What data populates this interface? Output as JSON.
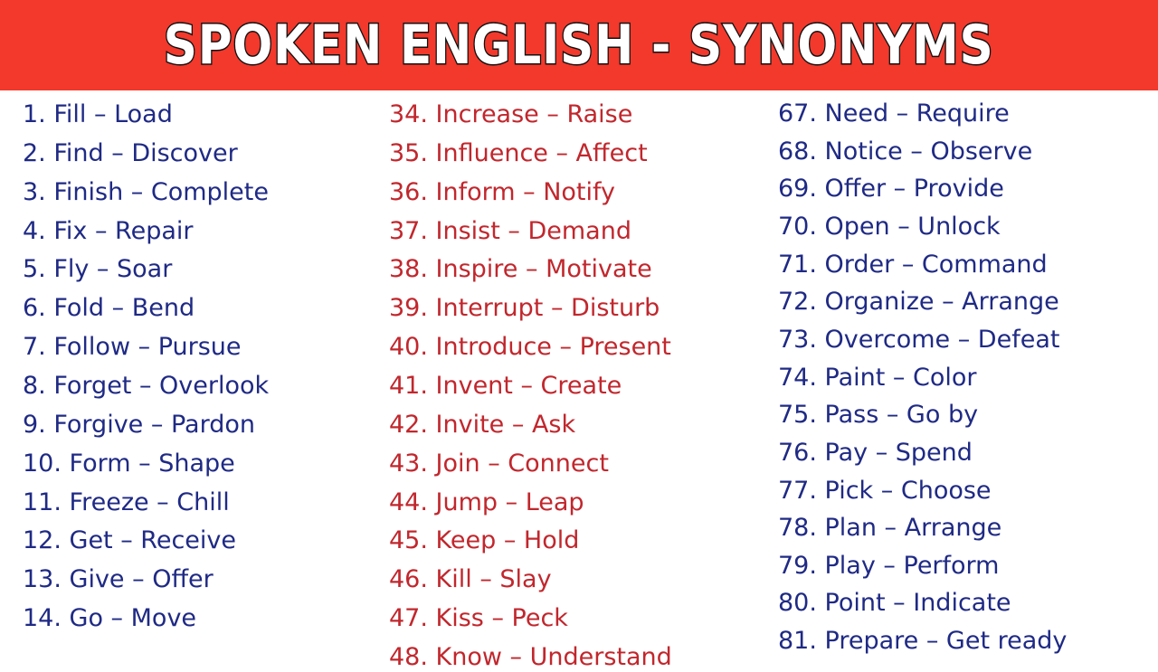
{
  "header": {
    "title": "Spoken English - Synonyms"
  },
  "columns": [
    [
      "1. Fill – Load",
      "2. Find – Discover",
      "3. Finish – Complete",
      "4. Fix – Repair",
      "5. Fly – Soar",
      "6. Fold – Bend",
      "7. Follow – Pursue",
      "8. Forget – Overlook",
      "9. Forgive – Pardon",
      "10. Form – Shape",
      "11. Freeze – Chill",
      "12. Get – Receive",
      "13. Give – Offer",
      "14. Go – Move"
    ],
    [
      "34. Increase – Raise",
      "35. Influence – Affect",
      "36. Inform – Notify",
      "37. Insist – Demand",
      "38. Inspire – Motivate",
      "39. Interrupt – Disturb",
      "40. Introduce – Present",
      "41. Invent – Create",
      "42. Invite – Ask",
      "43. Join – Connect",
      "44. Jump – Leap",
      "45. Keep – Hold",
      "46. Kill – Slay",
      "47. Kiss – Peck",
      "48. Know – Understand"
    ],
    [
      "67. Need – Require",
      "68. Notice – Observe",
      "69. Offer – Provide",
      "70. Open – Unlock",
      "71. Order – Command",
      "72. Organize – Arrange",
      "73. Overcome – Defeat",
      "74. Paint – Color",
      "75. Pass – Go by",
      "76. Pay – Spend",
      "77. Pick – Choose",
      "78. Plan – Arrange",
      "79. Play – Perform",
      "80. Point – Indicate",
      "81. Prepare – Get ready"
    ]
  ]
}
